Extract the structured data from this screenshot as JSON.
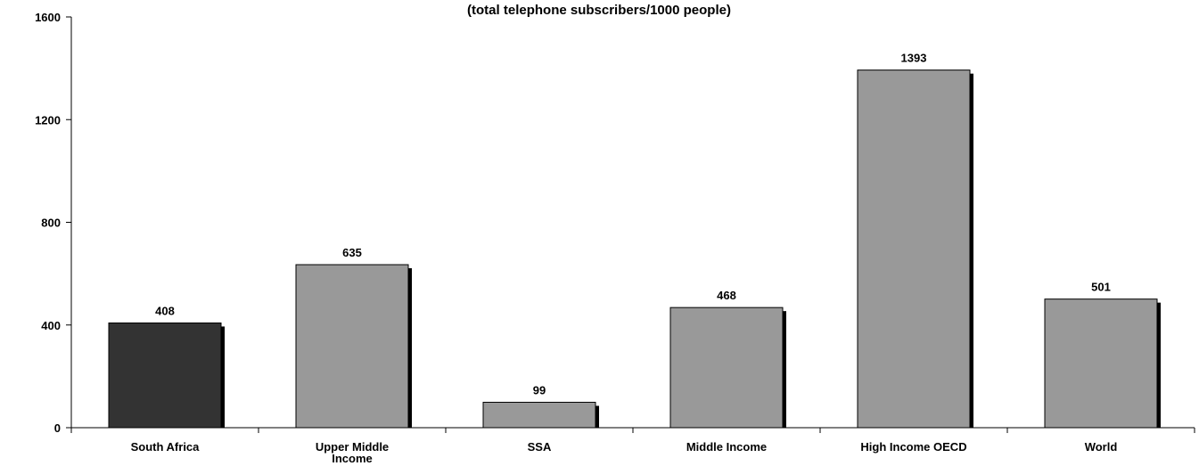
{
  "chart_data": {
    "type": "bar",
    "title": "(total telephone subscribers/1000 people)",
    "xlabel": "",
    "ylabel": "",
    "ylim": [
      0,
      1600
    ],
    "yticks": [
      0,
      400,
      800,
      1200,
      1600
    ],
    "grid": false,
    "legend": "none",
    "categories": [
      "South Africa",
      "Upper Middle Income",
      "SSA",
      "Middle Income",
      "High Income OECD",
      "World"
    ],
    "category_lines": [
      [
        "South Africa"
      ],
      [
        "Upper Middle",
        "Income"
      ],
      [
        "SSA"
      ],
      [
        "Middle Income"
      ],
      [
        "High Income OECD"
      ],
      [
        "World"
      ]
    ],
    "values": [
      408,
      635,
      99,
      468,
      1393,
      501
    ],
    "value_labels": [
      "408",
      "635",
      "99",
      "468",
      "1393",
      "501"
    ],
    "colors": {
      "highlight": "#333333",
      "default": "#999999",
      "shadow": "#000000",
      "axis": "#000000"
    },
    "bar_colors": [
      "#333333",
      "#999999",
      "#999999",
      "#999999",
      "#999999",
      "#999999"
    ]
  }
}
